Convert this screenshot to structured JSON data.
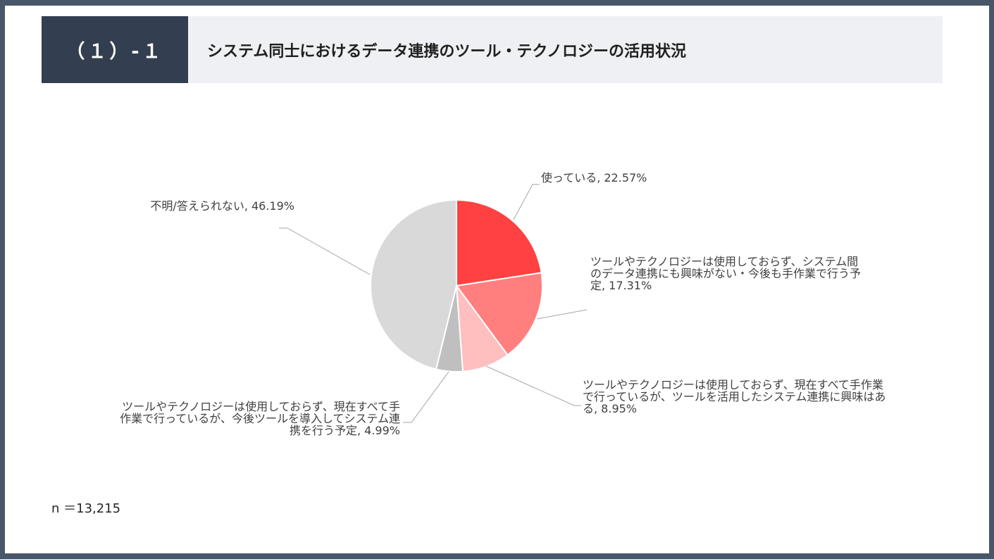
{
  "header": {
    "section_number": "（１）-１",
    "title": "システム同士におけるデータ連携のツール・テクノロジーの活用状況"
  },
  "footer": {
    "sample_size": "n ＝13,215"
  },
  "chart_data": {
    "type": "pie",
    "title": "",
    "start_angle": "12 o'clock",
    "direction": "clockwise",
    "slices": [
      {
        "label": "使っている",
        "value": 22.57,
        "value_label": "22.57%",
        "color": "#ff4141",
        "lines": [
          "使っている, 22.57%"
        ]
      },
      {
        "label": "ツールやテクノロジーは使用しておらず、システム間のデータ連携にも興味がない・今後も手作業で行う予定",
        "value": 17.31,
        "value_label": "17.31%",
        "color": "#ff7f7f",
        "lines": [
          "ツールやテクノロジーは使用しておらず、システム間",
          "のデータ連携にも興味がない・今後も手作業で行う予",
          "定, 17.31%"
        ]
      },
      {
        "label": "ツールやテクノロジーは使用しておらず、現在すべて手作業で行っているが、ツールを活用したシステム連携に興味はある",
        "value": 8.95,
        "value_label": "8.95%",
        "color": "#ffbfbf",
        "lines": [
          "ツールやテクノロジーは使用しておらず、現在すべて手作業",
          "で行っているが、ツールを活用したシステム連携に興味はあ",
          "る, 8.95%"
        ]
      },
      {
        "label": "ツールやテクノロジーは使用しておらず、現在すべて手作業で行っているが、今後ツールを導入してシステム連携を行う予定",
        "value": 4.99,
        "value_label": "4.99%",
        "color": "#bfbfbf",
        "lines": [
          "ツールやテクノロジーは使用しておらず、現在すべて手",
          "作業で行っているが、今後ツールを導入してシステム連",
          "携を行う予定, 4.99%"
        ]
      },
      {
        "label": "不明/答えられない",
        "value": 46.19,
        "value_label": "46.19%",
        "color": "#d9d9d9",
        "lines": [
          "不明/答えられない, 46.19%"
        ]
      }
    ]
  }
}
